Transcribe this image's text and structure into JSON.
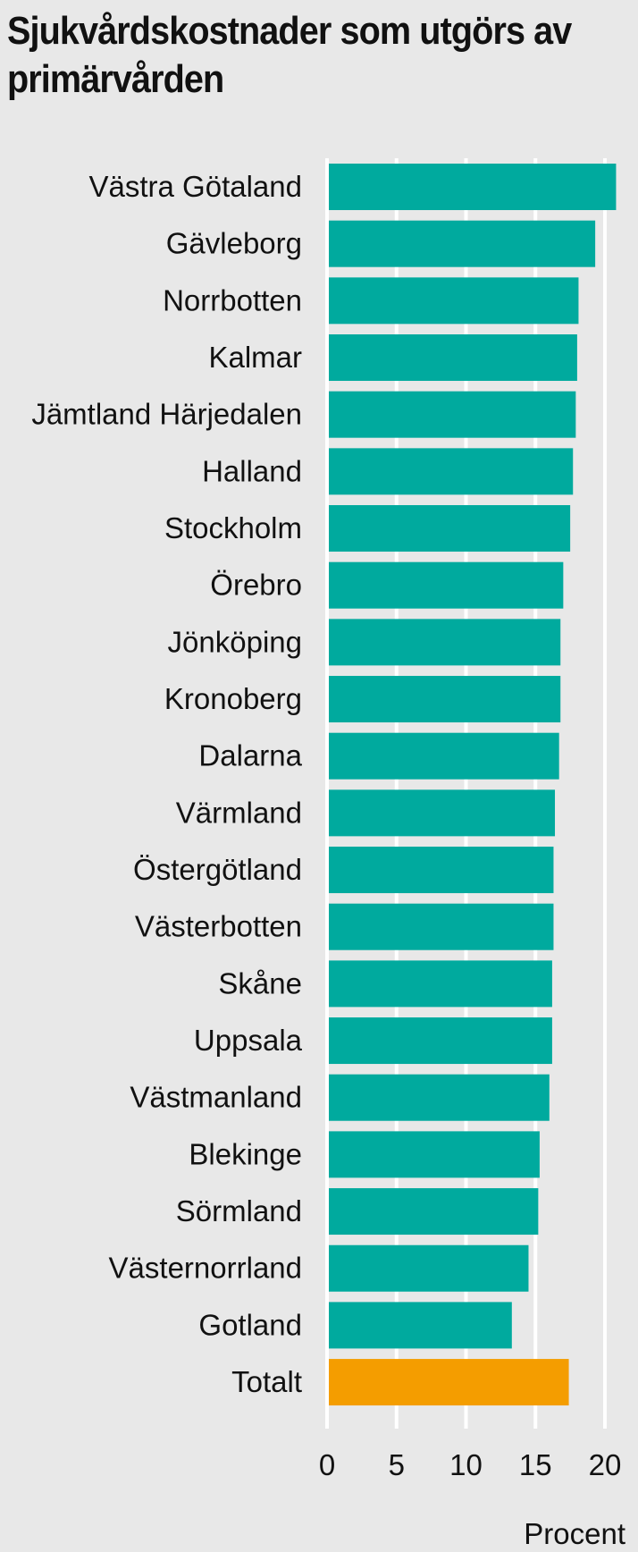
{
  "chart_data": {
    "type": "bar",
    "orientation": "horizontal",
    "title": "Sjukvårdskostnader som utgörs av primärvården",
    "xlabel": "Procent",
    "ylabel": "",
    "xlim": [
      0,
      21
    ],
    "xticks": [
      0,
      5,
      10,
      15,
      20
    ],
    "grid": true,
    "categories": [
      "Västra Götaland",
      "Gävleborg",
      "Norrbotten",
      "Kalmar",
      "Jämtland Härjedalen",
      "Halland",
      "Stockholm",
      "Örebro",
      "Jönköping",
      "Kronoberg",
      "Dalarna",
      "Värmland",
      "Östergötland",
      "Västerbotten",
      "Skåne",
      "Uppsala",
      "Västmanland",
      "Blekinge",
      "Sörmland",
      "Västernorrland",
      "Gotland",
      "Totalt"
    ],
    "values": [
      20.8,
      19.3,
      18.1,
      18.0,
      17.9,
      17.7,
      17.5,
      17.0,
      16.8,
      16.8,
      16.7,
      16.4,
      16.3,
      16.3,
      16.2,
      16.2,
      16.0,
      15.3,
      15.2,
      14.5,
      13.3,
      17.4
    ],
    "colors": {
      "region": "#00aa9e",
      "total": "#f49d00",
      "grid": "#ffffff"
    }
  }
}
